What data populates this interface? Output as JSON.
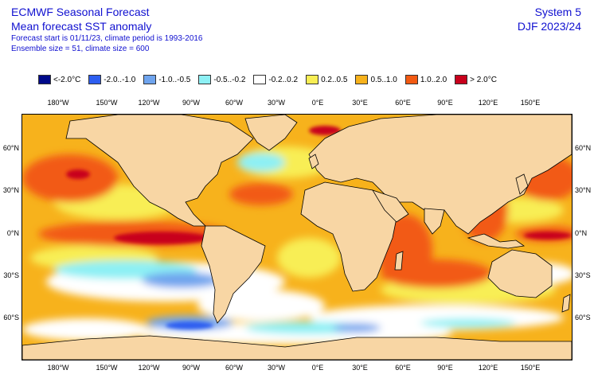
{
  "header": {
    "title_line1": "ECMWF Seasonal Forecast",
    "title_line2": "Mean forecast SST anomaly",
    "sub_line1": "Forecast start is 01/11/23, climate period is 1993-2016",
    "sub_line2": "Ensemble size = 51, climate size = 600",
    "system": "System 5",
    "period": "DJF 2023/24"
  },
  "legend": [
    {
      "label": "<-2.0°C",
      "color": "#000a8a"
    },
    {
      "label": "-2.0..-1.0",
      "color": "#2d5ef0"
    },
    {
      "label": "-1.0..-0.5",
      "color": "#6fa4ee"
    },
    {
      "label": "-0.5..-0.2",
      "color": "#8df0f4"
    },
    {
      "label": "-0.2..0.2",
      "color": "#ffffff"
    },
    {
      "label": "0.2..0.5",
      "color": "#f8ee54"
    },
    {
      "label": "0.5..1.0",
      "color": "#f7b21c"
    },
    {
      "label": "1.0..2.0",
      "color": "#f25a12"
    },
    {
      "label": "> 2.0°C",
      "color": "#c8001c"
    }
  ],
  "axes": {
    "lon_labels": [
      "180°W",
      "150°W",
      "120°W",
      "90°W",
      "60°W",
      "30°W",
      "0°E",
      "30°E",
      "60°E",
      "90°E",
      "120°E",
      "150°E"
    ],
    "lat_labels": [
      "60°N",
      "30°N",
      "0°N",
      "30°S",
      "60°S"
    ]
  },
  "colors": {
    "land": "#f8d6a4",
    "coast": "#000000"
  }
}
